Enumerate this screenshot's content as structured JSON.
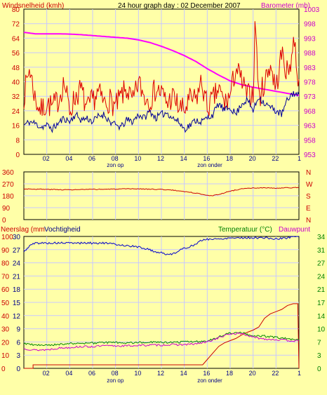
{
  "header": {
    "title": "24 hour graph day : 02 December 2007",
    "left_label": "Windsnelheid (kmh)",
    "right_label": "Barometer (mb)"
  },
  "x_axis": {
    "ticks": [
      "02",
      "04",
      "06",
      "08",
      "10",
      "12",
      "14",
      "16",
      "18",
      "20",
      "22",
      "1"
    ],
    "tick_hours": [
      2,
      4,
      6,
      8,
      10,
      12,
      14,
      16,
      18,
      20,
      22,
      24
    ],
    "sunrise_label": "zon op",
    "sunset_label": "zon onder",
    "sunrise_hour": 8.1,
    "sunset_hour": 16.3
  },
  "colors": {
    "background": "#ffffa8",
    "plot_background": "#ffffa8",
    "grid": "#c8c8ff",
    "wind_gust": "#dd0000",
    "wind_avg": "#000099",
    "barometer": "#ff00ff",
    "direction": "#cc0000",
    "rain": "#cc0000",
    "humidity": "#0000cc",
    "temperature": "#008800",
    "dewpoint": "#cc00cc",
    "text_red": "#cc0000",
    "text_magenta": "#cc00cc",
    "text_green": "#008000",
    "text_blue": "#000088"
  },
  "panel3": {
    "left_label_a": "Neerslag (mm",
    "left_label_b": "Vochtigheid",
    "right_label_a": "Temperatuur (°C)",
    "right_label_b": "Dauwpunt"
  },
  "chart_data": [
    {
      "type": "line",
      "title": "24 hour graph day : 02 December 2007",
      "x_unit": "hour",
      "xlim": [
        0,
        24
      ],
      "y_left": {
        "label": "Windsnelheid (kmh)",
        "ticks": [
          "80",
          "72",
          "64",
          "56",
          "48",
          "40",
          "32",
          "24",
          "16",
          "8",
          "0"
        ],
        "lim": [
          0,
          80
        ]
      },
      "y_right": {
        "label": "Barometer (mb)",
        "ticks": [
          "1003",
          "998",
          "993",
          "988",
          "983",
          "978",
          "973",
          "968",
          "963",
          "958",
          "953"
        ],
        "lim": [
          953,
          1003
        ]
      },
      "series": [
        {
          "axis": "left",
          "x": [
            0,
            0.5,
            1,
            1.5,
            2,
            2.5,
            3,
            3.5,
            4,
            4.5,
            5,
            5.5,
            6,
            6.5,
            7,
            7.5,
            8,
            8.5,
            9,
            9.5,
            10,
            10.5,
            11,
            11.5,
            12,
            12.5,
            13,
            13.5,
            14,
            14.5,
            15,
            15.5,
            16,
            16.5,
            17,
            17.5,
            18,
            18.5,
            19,
            19.5,
            20,
            20.2,
            20.5,
            21,
            21.5,
            22,
            22.5,
            23,
            23.3,
            23.6,
            24
          ],
          "values": [
            32,
            48,
            30,
            24,
            28,
            26,
            30,
            40,
            24,
            32,
            36,
            24,
            30,
            34,
            28,
            30,
            26,
            32,
            36,
            28,
            40,
            32,
            30,
            36,
            34,
            28,
            32,
            26,
            24,
            30,
            30,
            40,
            26,
            30,
            36,
            28,
            32,
            48,
            40,
            32,
            34,
            76,
            30,
            40,
            50,
            36,
            56,
            44,
            52,
            64,
            36
          ]
        },
        {
          "axis": "left",
          "x": [
            0,
            0.5,
            1,
            1.5,
            2,
            2.5,
            3,
            3.5,
            4,
            4.5,
            5,
            5.5,
            6,
            6.5,
            7,
            7.5,
            8,
            8.5,
            9,
            9.5,
            10,
            10.5,
            11,
            11.5,
            12,
            12.5,
            13,
            13.5,
            14,
            14.5,
            15,
            15.5,
            16,
            16.5,
            17,
            17.5,
            18,
            18.5,
            19,
            19.5,
            20,
            20.5,
            21,
            21.5,
            22,
            22.5,
            23,
            23.5,
            24
          ],
          "values": [
            16,
            18,
            17,
            15,
            16,
            14,
            17,
            20,
            18,
            22,
            19,
            20,
            18,
            21,
            22,
            18,
            16,
            15,
            19,
            18,
            22,
            20,
            24,
            20,
            22,
            23,
            20,
            18,
            14,
            16,
            19,
            18,
            20,
            22,
            28,
            24,
            26,
            22,
            28,
            30,
            24,
            32,
            28,
            26,
            24,
            22,
            30,
            34,
            32
          ]
        },
        {
          "axis": "right",
          "x": [
            0,
            1,
            2,
            3,
            4,
            5,
            6,
            7,
            8,
            9,
            10,
            11,
            12,
            13,
            14,
            15,
            16,
            17,
            18,
            19,
            20,
            21,
            22,
            23,
            24
          ],
          "values": [
            995.0,
            994.5,
            994.5,
            994.5,
            994.4,
            994.2,
            993.9,
            993.6,
            993.3,
            993.0,
            992.4,
            991.5,
            990.2,
            988.7,
            987.0,
            985.0,
            982.5,
            980.3,
            978.3,
            977.0,
            976.1,
            975.4,
            974.7,
            974.0,
            973.3
          ]
        }
      ]
    },
    {
      "type": "line",
      "y_left": {
        "ticks": [
          "360",
          "270",
          "180",
          "90",
          "0"
        ],
        "lim": [
          0,
          360
        ]
      },
      "y_right": {
        "ticks": [
          "N",
          "W",
          "S",
          "E",
          "N"
        ]
      },
      "series": [
        {
          "x": [
            0,
            2,
            4,
            6,
            8,
            10,
            12,
            13,
            14,
            15,
            16,
            16.5,
            17,
            18,
            19,
            20,
            21,
            22,
            23,
            24
          ],
          "values": [
            232,
            228,
            225,
            228,
            230,
            232,
            228,
            222,
            212,
            200,
            185,
            180,
            190,
            215,
            232,
            238,
            240,
            236,
            240,
            242
          ]
        }
      ]
    },
    {
      "type": "line",
      "y_left": {
        "label": "Neerslag (mm / Vochtigheid",
        "ticks_a": [
          "100",
          "90",
          "80",
          "70",
          "60",
          "50",
          "40",
          "30",
          "20",
          "10",
          "0"
        ],
        "ticks_b": [
          "30",
          "27",
          "24",
          "21",
          "18",
          "15",
          "12",
          "9",
          "6",
          "3",
          "0"
        ],
        "lim": [
          0,
          100
        ]
      },
      "y_right": {
        "label": "Temperatuur (°C) / Dauwpunt",
        "ticks": [
          "34",
          "31",
          "27",
          "24",
          "21",
          "17",
          "14",
          "10",
          "7",
          "3",
          "0"
        ],
        "lim": [
          0,
          34
        ]
      },
      "series": [
        {
          "x": [
            0,
            0.8,
            0.8,
            15.6,
            16.0,
            16.5,
            17.0,
            17.5,
            18.0,
            18.5,
            19.0,
            19.5,
            20.0,
            20.5,
            21.0,
            21.5,
            22.0,
            22.5,
            23.0,
            23.5,
            23.9,
            24
          ],
          "values": [
            0,
            0,
            0.8,
            0.8,
            2.0,
            3.5,
            5.0,
            5.8,
            6.3,
            6.8,
            7.6,
            8.2,
            8.7,
            9.4,
            11.4,
            12.4,
            12.9,
            13.4,
            14.3,
            14.7,
            14.7,
            0
          ]
        },
        {
          "x": [
            0,
            0.5,
            1,
            2,
            3,
            4,
            5,
            6,
            7,
            8,
            9,
            10,
            11,
            11.5,
            12,
            12.5,
            13,
            14,
            15,
            15.5,
            16,
            17,
            18,
            19,
            20,
            21,
            22,
            23,
            23.5,
            24
          ],
          "values": [
            88,
            93,
            95,
            95,
            95,
            95,
            95,
            95,
            95,
            94,
            93,
            92,
            90,
            88,
            88,
            86,
            87,
            91,
            94,
            97,
            98,
            98,
            99,
            99,
            99,
            99,
            98,
            99,
            100,
            100
          ]
        },
        {
          "x": [
            0,
            1,
            2,
            3,
            4,
            5,
            6,
            7,
            8,
            9,
            10,
            11,
            12,
            13,
            14,
            15,
            16,
            17,
            18,
            19,
            20,
            21,
            22,
            23,
            24
          ],
          "values": [
            6.4,
            6.0,
            5.9,
            6.2,
            6.4,
            6.4,
            6.5,
            6.6,
            6.7,
            6.5,
            6.7,
            6.8,
            6.6,
            6.7,
            6.8,
            6.9,
            7.0,
            8.1,
            9.1,
            9.2,
            8.3,
            8.3,
            8.0,
            7.6,
            7.3
          ]
        },
        {
          "x": [
            0,
            1,
            2,
            3,
            4,
            5,
            6,
            7,
            8,
            9,
            10,
            11,
            12,
            13,
            14,
            15,
            16,
            17,
            18,
            19,
            20,
            21,
            22,
            23,
            24
          ],
          "values": [
            5.1,
            4.7,
            4.8,
            5.2,
            5.4,
            5.6,
            5.6,
            5.8,
            5.8,
            5.8,
            5.9,
            6.0,
            6.0,
            6.1,
            6.1,
            6.3,
            6.8,
            7.9,
            8.9,
            9.0,
            8.0,
            7.6,
            7.4,
            7.2,
            7.0
          ]
        }
      ]
    }
  ]
}
